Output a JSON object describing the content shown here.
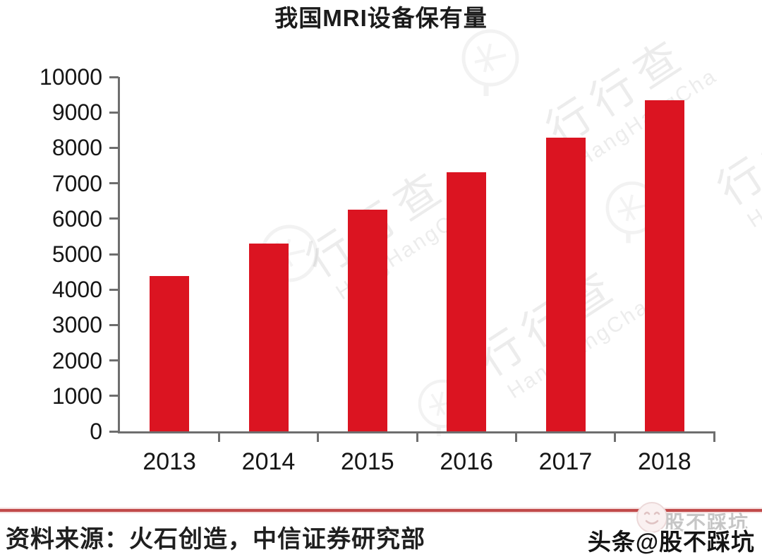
{
  "chart_data": {
    "type": "bar",
    "title": "我国MRI设备保有量",
    "categories": [
      "2013",
      "2014",
      "2015",
      "2016",
      "2017",
      "2018"
    ],
    "values": [
      4380,
      5290,
      6260,
      7320,
      8290,
      9340
    ],
    "ylim": [
      0,
      10000
    ],
    "y_tick_step": 1000,
    "xlabel": "",
    "ylabel": "",
    "grid": false,
    "legend": false,
    "bar_color": "#db1421",
    "axis_color": "#6e6e6e"
  },
  "watermark": {
    "cjk_text": "行行查",
    "latin_text": "HangHangCha"
  },
  "footer": {
    "source_text": "资料来源：火石创造，中信证券研究部",
    "divider_color": "#c14a4a"
  },
  "badge": {
    "ghost_text": "股不踩坑",
    "main_text": "头条@股不踩坑"
  }
}
